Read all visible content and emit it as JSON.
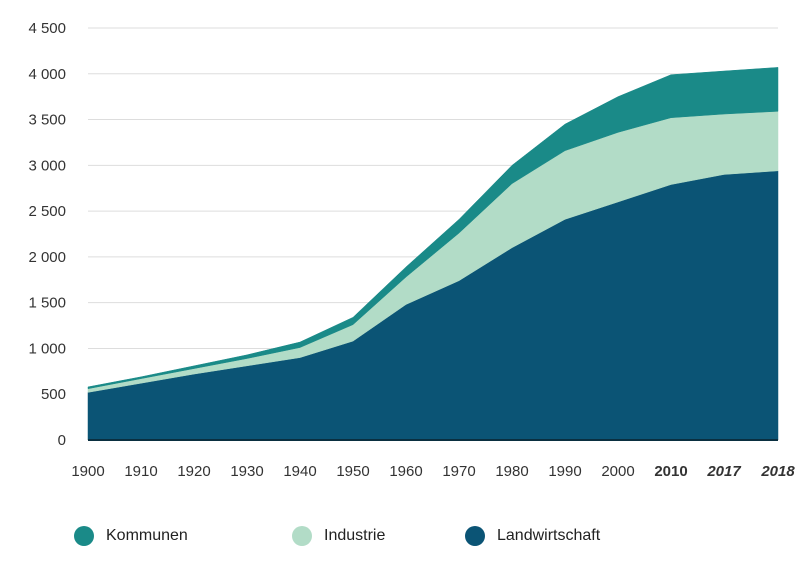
{
  "chart_data": {
    "type": "area",
    "stacked": true,
    "title": "",
    "xlabel": "",
    "ylabel": "",
    "ylim": [
      0,
      4500
    ],
    "yticks": [
      0,
      500,
      1000,
      1500,
      2000,
      2500,
      3000,
      3500,
      4000,
      4500
    ],
    "ytick_labels": [
      "0",
      "500",
      "1 000",
      "1 500",
      "2 000",
      "2 500",
      "3 000",
      "3 500",
      "4 000",
      "4 500"
    ],
    "categories": [
      "1900",
      "1910",
      "1920",
      "1930",
      "1940",
      "1950",
      "1960",
      "1970",
      "1980",
      "1990",
      "2000",
      "2010",
      "2017",
      "2018"
    ],
    "bold_categories": [
      "2010",
      "2017",
      "2018"
    ],
    "italic_categories": [
      "2017",
      "2018"
    ],
    "grid": true,
    "legend_position": "bottom",
    "series": [
      {
        "name": "Landwirtschaft",
        "color": "#0b5475",
        "values": [
          520,
          620,
          720,
          810,
          900,
          1080,
          1480,
          1740,
          2100,
          2410,
          2600,
          2790,
          2900,
          2940
        ]
      },
      {
        "name": "Industrie",
        "color": "#b2dcc7",
        "values": [
          40,
          50,
          60,
          80,
          110,
          180,
          300,
          520,
          700,
          750,
          760,
          730,
          660,
          650
        ]
      },
      {
        "name": "Kommunen",
        "color": "#1a8a88",
        "values": [
          20,
          20,
          30,
          40,
          60,
          80,
          110,
          150,
          200,
          290,
          390,
          470,
          470,
          480
        ]
      }
    ]
  },
  "legend": {
    "items": [
      {
        "label": "Kommunen",
        "color": "#1a8a88"
      },
      {
        "label": "Industrie",
        "color": "#b2dcc7"
      },
      {
        "label": "Landwirtschaft",
        "color": "#0b5475"
      }
    ]
  }
}
